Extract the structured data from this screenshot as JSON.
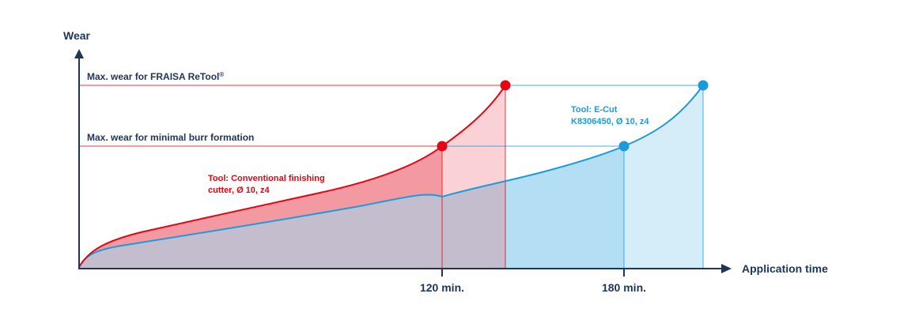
{
  "chart_data": {
    "type": "area",
    "title": "",
    "ylabel": "Wear",
    "xlabel": "Application time",
    "x_ticks": [
      "120 min.",
      "180 min."
    ],
    "reference_lines": [
      {
        "label": "Max. wear for FRAISA ReTool®",
        "level": "high"
      },
      {
        "label": "Max. wear for minimal burr formation",
        "level": "low"
      }
    ],
    "series": [
      {
        "name": "Tool: Conventional finishing cutter, Ø 10, z4",
        "color": "#e30613",
        "points_x_min": [
          0,
          10,
          40,
          80,
          110,
          120,
          130,
          141
        ],
        "reaches_burr_limit_at": "120 min."
      },
      {
        "name": "Tool: E-Cut K8306450, Ø 10, z4",
        "color": "#1a9bdc",
        "points_x_min": [
          0,
          10,
          60,
          120,
          160,
          180,
          190,
          206
        ],
        "reaches_burr_limit_at": "180 min."
      }
    ],
    "annotations": [
      {
        "text": "Tool: Conventional finishing cutter, Ø 10, z4",
        "color": "#e30613"
      },
      {
        "text": "Tool: E-Cut K8306450, Ø 10, z4",
        "color": "#1a9bdc"
      }
    ],
    "grid": false,
    "legend": "none"
  },
  "labels": {
    "red_line1": "Tool: Conventional finishing",
    "red_line2": "cutter, Ø 10, z4",
    "blue_line1": "Tool: E-Cut",
    "blue_line2": "K8306450, Ø 10, z4",
    "max_retool_text": "Max. wear for FRAISA ReTool",
    "max_retool_sup": "®"
  },
  "colors": {
    "axis": "#1d3557",
    "red": "#e30613",
    "red_fill": "#f39aa1",
    "blue": "#1a9bdc",
    "blue_fill": "#b3def4",
    "overlap_fill": "#c4929f"
  }
}
